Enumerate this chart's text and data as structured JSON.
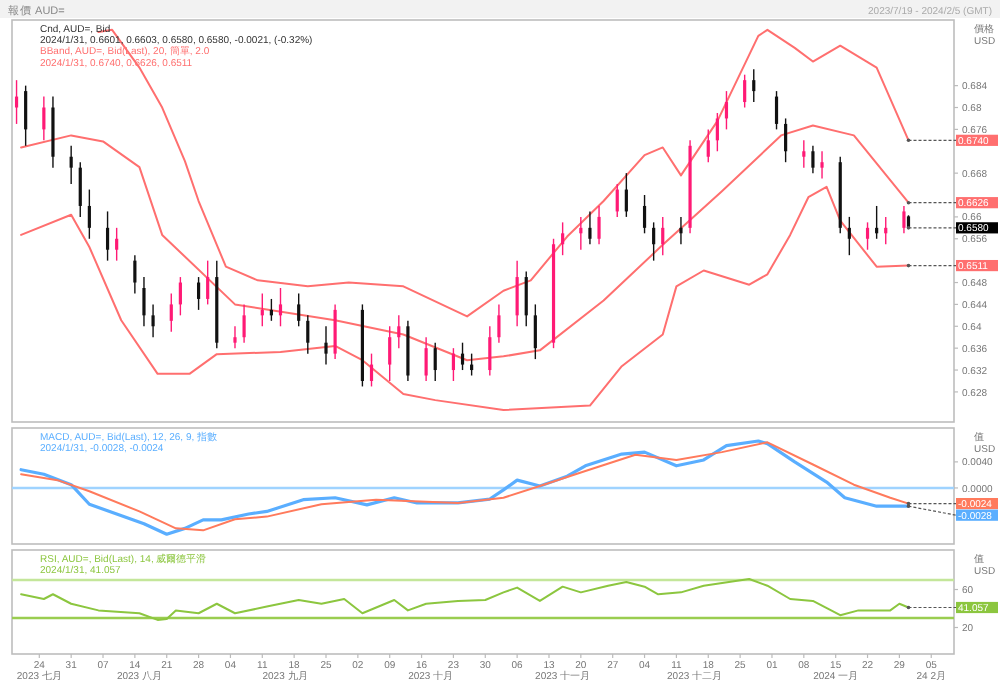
{
  "chart_data": [
    {
      "type": "candlestick",
      "title": "報價 AUD=",
      "subtitle": "2023/7/19 - 2024/2/5 (GMT)",
      "ylabel": "價格 USD",
      "annotations": [
        "Cnd, AUD=, Bid",
        "2024/1/31, 0.6601, 0.6603, 0.6580, 0.6580, -0.0021, (-0.32%)",
        "BBand, AUD=, Bid(Last), 20, 簡單, 2.0",
        "2024/1/31, 0.6740, 0.6626, 0.6511",
        {
          "text": "0.6740",
          "x": "2024-01-31",
          "y": 0.674
        },
        {
          "text": "0.6626",
          "x": "2024-01-31",
          "y": 0.6626
        },
        {
          "text": "0.6580",
          "x": "2024-01-31",
          "y": 0.658
        },
        {
          "text": "0.6511",
          "x": "2024-01-31",
          "y": 0.6511
        }
      ],
      "x": [
        "2023-07-19",
        "2023-07-21",
        "2023-07-25",
        "2023-07-27",
        "2023-07-31",
        "2023-08-02",
        "2023-08-04",
        "2023-08-08",
        "2023-08-10",
        "2023-08-14",
        "2023-08-16",
        "2023-08-18",
        "2023-08-22",
        "2023-08-24",
        "2023-08-28",
        "2023-08-30",
        "2023-09-01",
        "2023-09-05",
        "2023-09-07",
        "2023-09-11",
        "2023-09-13",
        "2023-09-15",
        "2023-09-19",
        "2023-09-21",
        "2023-09-25",
        "2023-09-27",
        "2023-10-03",
        "2023-10-05",
        "2023-10-09",
        "2023-10-11",
        "2023-10-13",
        "2023-10-17",
        "2023-10-19",
        "2023-10-23",
        "2023-10-25",
        "2023-10-27",
        "2023-10-31",
        "2023-11-02",
        "2023-11-06",
        "2023-11-08",
        "2023-11-10",
        "2023-11-14",
        "2023-11-16",
        "2023-11-20",
        "2023-11-22",
        "2023-11-24",
        "2023-11-28",
        "2023-11-30",
        "2023-12-04",
        "2023-12-06",
        "2023-12-08",
        "2023-12-12",
        "2023-12-14",
        "2023-12-18",
        "2023-12-20",
        "2023-12-22",
        "2023-12-26",
        "2023-12-28",
        "2024-01-02",
        "2024-01-04",
        "2024-01-08",
        "2024-01-10",
        "2024-01-12",
        "2024-01-16",
        "2024-01-18",
        "2024-01-22",
        "2024-01-24",
        "2024-01-26",
        "2024-01-30",
        "2024-01-31"
      ],
      "ohlc": [
        [
          0.68,
          0.685,
          0.677,
          0.682
        ],
        [
          0.683,
          0.684,
          0.673,
          0.676
        ],
        [
          0.676,
          0.682,
          0.674,
          0.68
        ],
        [
          0.68,
          0.682,
          0.669,
          0.671
        ],
        [
          0.671,
          0.673,
          0.666,
          0.669
        ],
        [
          0.669,
          0.67,
          0.66,
          0.662
        ],
        [
          0.662,
          0.665,
          0.656,
          0.658
        ],
        [
          0.658,
          0.661,
          0.652,
          0.654
        ],
        [
          0.654,
          0.658,
          0.652,
          0.656
        ],
        [
          0.652,
          0.653,
          0.646,
          0.648
        ],
        [
          0.647,
          0.649,
          0.64,
          0.642
        ],
        [
          0.642,
          0.644,
          0.638,
          0.64
        ],
        [
          0.641,
          0.646,
          0.639,
          0.644
        ],
        [
          0.644,
          0.649,
          0.642,
          0.648
        ],
        [
          0.648,
          0.649,
          0.643,
          0.645
        ],
        [
          0.645,
          0.652,
          0.644,
          0.649
        ],
        [
          0.649,
          0.652,
          0.636,
          0.637
        ],
        [
          0.637,
          0.64,
          0.636,
          0.638
        ],
        [
          0.638,
          0.644,
          0.637,
          0.642
        ],
        [
          0.642,
          0.646,
          0.64,
          0.643
        ],
        [
          0.643,
          0.645,
          0.641,
          0.642
        ],
        [
          0.642,
          0.647,
          0.64,
          0.644
        ],
        [
          0.644,
          0.646,
          0.64,
          0.641
        ],
        [
          0.641,
          0.642,
          0.635,
          0.637
        ],
        [
          0.637,
          0.64,
          0.633,
          0.635
        ],
        [
          0.635,
          0.644,
          0.634,
          0.643
        ],
        [
          0.643,
          0.644,
          0.629,
          0.63
        ],
        [
          0.63,
          0.635,
          0.629,
          0.633
        ],
        [
          0.633,
          0.64,
          0.63,
          0.638
        ],
        [
          0.638,
          0.642,
          0.636,
          0.64
        ],
        [
          0.64,
          0.641,
          0.63,
          0.631
        ],
        [
          0.631,
          0.638,
          0.63,
          0.636
        ],
        [
          0.636,
          0.637,
          0.63,
          0.632
        ],
        [
          0.632,
          0.636,
          0.63,
          0.635
        ],
        [
          0.635,
          0.637,
          0.632,
          0.633
        ],
        [
          0.633,
          0.635,
          0.631,
          0.632
        ],
        [
          0.632,
          0.64,
          0.631,
          0.638
        ],
        [
          0.638,
          0.644,
          0.637,
          0.642
        ],
        [
          0.642,
          0.652,
          0.64,
          0.649
        ],
        [
          0.649,
          0.65,
          0.64,
          0.642
        ],
        [
          0.642,
          0.644,
          0.634,
          0.636
        ],
        [
          0.637,
          0.656,
          0.636,
          0.655
        ],
        [
          0.655,
          0.659,
          0.653,
          0.657
        ],
        [
          0.657,
          0.66,
          0.654,
          0.658
        ],
        [
          0.658,
          0.661,
          0.655,
          0.656
        ],
        [
          0.656,
          0.662,
          0.655,
          0.66
        ],
        [
          0.661,
          0.666,
          0.66,
          0.665
        ],
        [
          0.665,
          0.668,
          0.66,
          0.661
        ],
        [
          0.662,
          0.664,
          0.657,
          0.658
        ],
        [
          0.658,
          0.659,
          0.652,
          0.655
        ],
        [
          0.655,
          0.66,
          0.653,
          0.658
        ],
        [
          0.658,
          0.66,
          0.655,
          0.657
        ],
        [
          0.658,
          0.674,
          0.657,
          0.673
        ],
        [
          0.671,
          0.676,
          0.67,
          0.674
        ],
        [
          0.674,
          0.679,
          0.672,
          0.678
        ],
        [
          0.678,
          0.683,
          0.676,
          0.681
        ],
        [
          0.681,
          0.686,
          0.68,
          0.685
        ],
        [
          0.685,
          0.687,
          0.681,
          0.683
        ],
        [
          0.682,
          0.683,
          0.676,
          0.677
        ],
        [
          0.677,
          0.678,
          0.67,
          0.672
        ],
        [
          0.671,
          0.674,
          0.669,
          0.672
        ],
        [
          0.672,
          0.673,
          0.668,
          0.669
        ],
        [
          0.669,
          0.672,
          0.667,
          0.67
        ],
        [
          0.67,
          0.671,
          0.657,
          0.658
        ],
        [
          0.658,
          0.66,
          0.653,
          0.656
        ],
        [
          0.656,
          0.659,
          0.654,
          0.658
        ],
        [
          0.658,
          0.662,
          0.656,
          0.657
        ],
        [
          0.657,
          0.66,
          0.655,
          0.658
        ],
        [
          0.658,
          0.662,
          0.657,
          0.661
        ],
        [
          0.6601,
          0.6603,
          0.658,
          0.658
        ]
      ],
      "colors": [
        "#ff1a75",
        "#111111",
        "#ff1a75",
        "#111111",
        "#111111",
        "#111111",
        "#111111",
        "#111111",
        "#ff1a75",
        "#111111",
        "#111111",
        "#111111",
        "#ff1a75",
        "#ff1a75",
        "#111111",
        "#ff1a75",
        "#111111",
        "#ff1a75",
        "#ff1a75",
        "#ff1a75",
        "#111111",
        "#ff1a75",
        "#111111",
        "#111111",
        "#111111",
        "#ff1a75",
        "#111111",
        "#ff1a75",
        "#ff1a75",
        "#ff1a75",
        "#111111",
        "#ff1a75",
        "#111111",
        "#ff1a75",
        "#111111",
        "#111111",
        "#ff1a75",
        "#ff1a75",
        "#ff1a75",
        "#111111",
        "#111111",
        "#ff1a75",
        "#ff1a75",
        "#ff1a75",
        "#111111",
        "#ff1a75",
        "#ff1a75",
        "#111111",
        "#111111",
        "#111111",
        "#ff1a75",
        "#111111",
        "#ff1a75",
        "#ff1a75",
        "#ff1a75",
        "#ff1a75",
        "#ff1a75",
        "#111111",
        "#111111",
        "#111111",
        "#ff1a75",
        "#111111",
        "#ff1a75",
        "#111111",
        "#111111",
        "#ff1a75",
        "#111111",
        "#ff1a75",
        "#ff1a75",
        "#111111"
      ],
      "series": [
        {
          "type": "line",
          "color": "#ff6f6f",
          "x": [
            "2023-08-06",
            "2023-08-09",
            "2023-08-15",
            "2023-08-20",
            "2023-08-25",
            "2023-08-28",
            "2023-09-03",
            "2023-09-10",
            "2023-09-21",
            "2023-09-30",
            "2023-10-12",
            "2023-10-26",
            "2023-11-03",
            "2023-11-09",
            "2023-11-17",
            "2023-11-25",
            "2023-12-04",
            "2023-12-08",
            "2023-12-12",
            "2023-12-20",
            "2023-12-29",
            "2023-12-31",
            "2024-01-06",
            "2024-01-10",
            "2024-01-16",
            "2024-01-24",
            "2024-01-31"
          ],
          "values": [
            0.6938,
            0.6942,
            0.6873,
            0.68,
            0.6702,
            0.6629,
            0.6509,
            0.6484,
            0.6473,
            0.648,
            0.6473,
            0.6418,
            0.6465,
            0.6484,
            0.6564,
            0.6629,
            0.6713,
            0.6727,
            0.6676,
            0.6775,
            0.6931,
            0.6942,
            0.6909,
            0.6884,
            0.6913,
            0.6873,
            0.674
          ]
        },
        {
          "type": "line",
          "color": "#ff6f6f",
          "x": [
            "2023-07-20",
            "2023-07-31",
            "2023-08-07",
            "2023-08-15",
            "2023-08-20",
            "2023-09-05",
            "2023-09-27",
            "2023-10-12",
            "2023-10-26",
            "2023-11-03",
            "2023-11-11",
            "2023-11-25",
            "2023-12-08",
            "2023-12-21",
            "2024-01-03",
            "2024-01-10",
            "2024-01-19",
            "2024-01-31"
          ],
          "values": [
            0.6727,
            0.6749,
            0.6738,
            0.6691,
            0.6567,
            0.644,
            0.6411,
            0.6385,
            0.6338,
            0.6345,
            0.6356,
            0.6447,
            0.6549,
            0.6647,
            0.6749,
            0.6767,
            0.6749,
            0.6626
          ]
        },
        {
          "type": "line",
          "color": "#ff6f6f",
          "x": [
            "2023-07-20",
            "2023-07-31",
            "2023-08-04",
            "2023-08-11",
            "2023-08-19",
            "2023-08-26",
            "2023-09-01",
            "2023-09-15",
            "2023-09-27",
            "2023-10-03",
            "2023-10-12",
            "2023-10-19",
            "2023-11-03",
            "2023-11-22",
            "2023-11-29",
            "2023-12-08",
            "2023-12-11",
            "2023-12-17",
            "2023-12-27",
            "2023-12-31",
            "2024-01-05",
            "2024-01-09",
            "2024-01-13",
            "2024-01-16",
            "2024-01-24",
            "2024-01-31"
          ],
          "values": [
            0.6567,
            0.6604,
            0.6545,
            0.6411,
            0.6313,
            0.6313,
            0.6349,
            0.6353,
            0.6364,
            0.6338,
            0.6276,
            0.6265,
            0.6247,
            0.6255,
            0.6327,
            0.6385,
            0.6473,
            0.6502,
            0.6476,
            0.6495,
            0.6567,
            0.6636,
            0.6655,
            0.6593,
            0.6509,
            0.6511
          ]
        }
      ],
      "xlim": [
        "2023-07-18",
        "2024-02-10"
      ],
      "ylim": [
        0.6225,
        0.696
      ],
      "yticks": [
        {
          "value": 0.684,
          "label": "0.684"
        },
        {
          "value": 0.68,
          "label": "0.68"
        },
        {
          "value": 0.676,
          "label": "0.676"
        },
        {
          "value": 0.668,
          "label": "0.668"
        },
        {
          "value": 0.66,
          "label": "0.66"
        },
        {
          "value": 0.656,
          "label": "0.656"
        },
        {
          "value": 0.648,
          "label": "0.648"
        },
        {
          "value": 0.644,
          "label": "0.644"
        },
        {
          "value": 0.64,
          "label": "0.64"
        },
        {
          "value": 0.636,
          "label": "0.636"
        },
        {
          "value": 0.632,
          "label": "0.632"
        },
        {
          "value": 0.628,
          "label": "0.628"
        }
      ],
      "tick_labels": "y"
    },
    {
      "type": "line",
      "ylabel": "值 USD",
      "annotations": [
        "MACD, AUD=, Bid(Last), 12, 26, 9, 指數",
        "2024/1/31, -0.0028, -0.0024",
        {
          "text": "-0.0024",
          "x": "2024-01-31",
          "y": -0.0024
        },
        {
          "text": "-0.0028",
          "x": "2024-01-31",
          "y": -0.0028
        }
      ],
      "series": [
        {
          "color": "#5aaeff",
          "x": [
            "2023-07-20",
            "2023-07-25",
            "2023-07-31",
            "2023-08-04",
            "2023-08-10",
            "2023-08-16",
            "2023-08-21",
            "2023-08-25",
            "2023-08-29",
            "2023-09-02",
            "2023-09-08",
            "2023-09-12",
            "2023-09-20",
            "2023-09-27",
            "2023-10-04",
            "2023-10-10",
            "2023-10-15",
            "2023-10-24",
            "2023-10-31",
            "2023-11-03",
            "2023-11-06",
            "2023-11-11",
            "2023-11-17",
            "2023-11-21",
            "2023-11-29",
            "2023-12-04",
            "2023-12-11",
            "2023-12-17",
            "2023-12-22",
            "2023-12-29",
            "2023-12-31",
            "2024-01-06",
            "2024-01-13",
            "2024-01-17",
            "2024-01-24",
            "2024-01-31"
          ],
          "values": [
            0.0028,
            0.0021,
            0.0005,
            -0.0025,
            -0.004,
            -0.0055,
            -0.0071,
            -0.0062,
            -0.0049,
            -0.0049,
            -0.004,
            -0.0036,
            -0.0018,
            -0.0015,
            -0.0026,
            -0.0015,
            -0.0023,
            -0.0023,
            -0.0017,
            -0.0003,
            0.0012,
            0.0003,
            0.0018,
            0.0034,
            0.0052,
            0.0055,
            0.0034,
            0.0043,
            0.0065,
            0.0072,
            0.0068,
            0.004,
            0.0009,
            -0.0015,
            -0.0028,
            -0.0028
          ]
        },
        {
          "color": "#ff7a5c",
          "x": [
            "2023-07-20",
            "2023-07-28",
            "2023-08-04",
            "2023-08-15",
            "2023-08-23",
            "2023-08-29",
            "2023-09-05",
            "2023-09-12",
            "2023-09-24",
            "2023-10-06",
            "2023-10-24",
            "2023-11-03",
            "2023-11-11",
            "2023-11-21",
            "2023-12-02",
            "2023-12-11",
            "2023-12-21",
            "2023-12-31",
            "2024-01-10",
            "2024-01-19",
            "2024-01-27",
            "2024-01-31"
          ],
          "values": [
            0.0021,
            0.0012,
            -0.0005,
            -0.0036,
            -0.0062,
            -0.0065,
            -0.0048,
            -0.0044,
            -0.0025,
            -0.0018,
            -0.0023,
            -0.0015,
            0.0003,
            0.0026,
            0.0051,
            0.0043,
            0.0055,
            0.007,
            0.0036,
            0.0005,
            -0.0015,
            -0.0024
          ]
        }
      ],
      "ref_lines": [
        {
          "axis": "y",
          "value": 0,
          "color": "#9fd3ff"
        }
      ],
      "xlim": [
        "2023-07-18",
        "2024-02-10"
      ],
      "ylim": [
        -0.0086,
        0.0092
      ],
      "yticks": [
        {
          "value": 0.004,
          "label": "0.0040"
        },
        {
          "value": 0,
          "label": "0.0000"
        }
      ],
      "tick_labels": "y"
    },
    {
      "type": "line",
      "ylabel": "值 USD",
      "annotations": [
        "RSI, AUD=, Bid(Last), 14, 威爾德平滑",
        "2024/1/31, 41.057",
        {
          "text": "41.057",
          "x": "2024-01-31",
          "y": 41.057
        }
      ],
      "series": [
        {
          "color": "#8cc63f",
          "x": [
            "2023-07-20",
            "2023-07-25",
            "2023-07-27",
            "2023-07-31",
            "2023-08-06",
            "2023-08-15",
            "2023-08-19",
            "2023-08-21",
            "2023-08-23",
            "2023-08-28",
            "2023-09-01",
            "2023-09-05",
            "2023-09-12",
            "2023-09-19",
            "2023-09-24",
            "2023-09-29",
            "2023-10-03",
            "2023-10-10",
            "2023-10-13",
            "2023-10-17",
            "2023-10-24",
            "2023-10-30",
            "2023-11-03",
            "2023-11-06",
            "2023-11-11",
            "2023-11-16",
            "2023-11-20",
            "2023-11-26",
            "2023-11-30",
            "2023-12-04",
            "2023-12-07",
            "2023-12-12",
            "2023-12-17",
            "2023-12-24",
            "2023-12-27",
            "2023-12-31",
            "2024-01-05",
            "2024-01-10",
            "2024-01-16",
            "2024-01-20",
            "2024-01-27",
            "2024-01-29",
            "2024-01-31"
          ],
          "values": [
            55,
            50,
            55,
            45,
            38,
            35,
            28,
            29,
            38,
            35,
            45,
            35,
            42,
            49,
            45,
            50,
            35,
            49,
            38,
            45,
            48,
            49,
            57,
            62,
            48,
            63,
            57,
            64,
            68,
            63,
            55,
            57,
            64,
            69,
            71,
            64,
            50,
            48,
            33,
            38,
            38,
            45,
            41.057
          ]
        }
      ],
      "ref_lines": [
        {
          "axis": "y",
          "value": 70,
          "color": "#c4e69a"
        },
        {
          "axis": "y",
          "value": 30,
          "color": "#9acd50"
        }
      ],
      "xlim": [
        "2023-07-18",
        "2024-02-10"
      ],
      "ylim": [
        -7.9,
        101.6
      ],
      "yticks": [
        60,
        20
      ],
      "xticks": [
        {
          "value": "2023-07-24",
          "label": "24"
        },
        {
          "value": "2023-07-31",
          "label": "31"
        },
        {
          "value": "2023-08-07",
          "label": "07"
        },
        {
          "value": "2023-08-14",
          "label": "14"
        },
        {
          "value": "2023-08-21",
          "label": "21"
        },
        {
          "value": "2023-08-28",
          "label": "28"
        },
        {
          "value": "2023-09-04",
          "label": "04"
        },
        {
          "value": "2023-09-11",
          "label": "11"
        },
        {
          "value": "2023-09-18",
          "label": "18"
        },
        {
          "value": "2023-09-25",
          "label": "25"
        },
        {
          "value": "2023-10-02",
          "label": "02"
        },
        {
          "value": "2023-10-09",
          "label": "09"
        },
        {
          "value": "2023-10-16",
          "label": "16"
        },
        {
          "value": "2023-10-23",
          "label": "23"
        },
        {
          "value": "2023-10-30",
          "label": "30"
        },
        {
          "value": "2023-11-06",
          "label": "06"
        },
        {
          "value": "2023-11-13",
          "label": "13"
        },
        {
          "value": "2023-11-20",
          "label": "20"
        },
        {
          "value": "2023-11-27",
          "label": "27"
        },
        {
          "value": "2023-12-04",
          "label": "04"
        },
        {
          "value": "2023-12-11",
          "label": "11"
        },
        {
          "value": "2023-12-18",
          "label": "18"
        },
        {
          "value": "2023-12-25",
          "label": "25"
        },
        {
          "value": "2024-01-01",
          "label": "01"
        },
        {
          "value": "2024-01-08",
          "label": "08"
        },
        {
          "value": "2024-01-15",
          "label": "15"
        },
        {
          "value": "2024-01-22",
          "label": "22"
        },
        {
          "value": "2024-01-29",
          "label": "29"
        },
        {
          "value": "2024-02-05",
          "label": "05"
        }
      ],
      "x2lim": [
        "2023-07-18",
        "2024-02-10"
      ],
      "x2ticks": [
        {
          "value": "2023-07-24",
          "label": "2023 七月"
        },
        {
          "value": "2023-08-15",
          "label": "2023 八月"
        },
        {
          "value": "2023-09-16",
          "label": "2023 九月"
        },
        {
          "value": "2023-10-18",
          "label": "2023 十月"
        },
        {
          "value": "2023-11-16",
          "label": "2023 十一月"
        },
        {
          "value": "2023-12-15",
          "label": "2023 十二月"
        },
        {
          "value": "2024-01-15",
          "label": "2024 一月"
        },
        {
          "value": "2024-02-05",
          "label": "24 2月"
        }
      ]
    }
  ]
}
